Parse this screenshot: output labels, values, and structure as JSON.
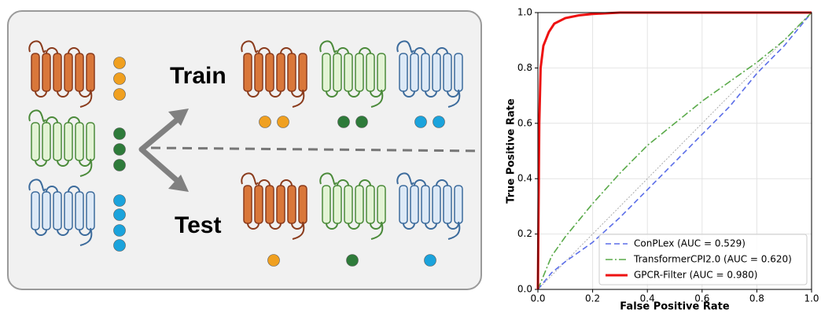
{
  "diagram": {
    "train_label": "Train",
    "test_label": "Test"
  },
  "chart_data": {
    "type": "line",
    "xlabel": "False Positive Rate",
    "ylabel": "True Positive Rate",
    "xlim": [
      0,
      1
    ],
    "ylim": [
      0,
      1
    ],
    "xticks": [
      {
        "value": 0,
        "label": "0.0"
      },
      {
        "value": 0.2,
        "label": "0.2"
      },
      {
        "value": 0.4,
        "label": "0.4"
      },
      {
        "value": 0.6,
        "label": "0.6"
      },
      {
        "value": 0.8,
        "label": "0.8"
      },
      {
        "value": 1,
        "label": "1.0"
      }
    ],
    "yticks": [
      {
        "value": 0,
        "label": "0.0"
      },
      {
        "value": 0.2,
        "label": "0.2"
      },
      {
        "value": 0.4,
        "label": "0.4"
      },
      {
        "value": 0.6,
        "label": "0.6"
      },
      {
        "value": 0.8,
        "label": "0.8"
      },
      {
        "value": 1,
        "label": "1.0"
      }
    ],
    "grid": true,
    "legend": "lower right",
    "series": [
      {
        "name": "ConPLex (AUC = 0.529)",
        "color": "#5b6ee8",
        "style": "dashed",
        "x": [
          0,
          0.05,
          0.1,
          0.2,
          0.3,
          0.4,
          0.5,
          0.6,
          0.7,
          0.8,
          0.9,
          1.0
        ],
        "values": [
          0,
          0.06,
          0.1,
          0.17,
          0.26,
          0.36,
          0.46,
          0.56,
          0.66,
          0.78,
          0.88,
          1.0
        ]
      },
      {
        "name": "TransformerCPI2.0 (AUC = 0.620)",
        "color": "#5aaa4a",
        "style": "dashdot",
        "x": [
          0,
          0.05,
          0.1,
          0.2,
          0.3,
          0.4,
          0.5,
          0.6,
          0.7,
          0.8,
          0.9,
          1.0
        ],
        "values": [
          0,
          0.12,
          0.19,
          0.31,
          0.42,
          0.52,
          0.6,
          0.68,
          0.75,
          0.82,
          0.9,
          1.0
        ]
      },
      {
        "name": "GPCR-Filter (AUC = 0.980)",
        "color": "#ee1111",
        "style": "solid",
        "x": [
          0,
          0.005,
          0.01,
          0.02,
          0.04,
          0.06,
          0.1,
          0.15,
          0.2,
          0.3,
          0.5,
          1.0
        ],
        "values": [
          0,
          0.6,
          0.8,
          0.88,
          0.93,
          0.96,
          0.98,
          0.99,
          0.995,
          1,
          1,
          1
        ]
      }
    ]
  }
}
